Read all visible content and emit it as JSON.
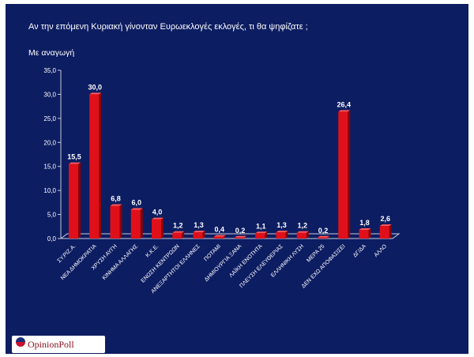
{
  "header": {
    "title": "Αν την επόμενη Κυριακή γίνονταν Ευρωεκλογές εκλογές, τι θα ψηφίζατε ;",
    "subtitle": "Με αναγωγή"
  },
  "logo": {
    "text": "OpinionPoll"
  },
  "colors": {
    "background": "#0d1d62",
    "bar_front": "#e0101a",
    "bar_side": "#8a0008",
    "bar_top": "#ff5a5a",
    "axis": "#c8ccd8"
  },
  "chart_data": {
    "type": "bar",
    "title": "Αν την επόμενη Κυριακή γίνονταν Ευρωεκλογές εκλογές, τι θα ψηφίζατε ;",
    "subtitle": "Με αναγωγή",
    "categories": [
      "ΣΥ.ΡΙΖ.Α.",
      "ΝΕΑ ΔΗΜΟΚΡΑΤΙΑ",
      "ΧΡΥΣΗ ΑΥΓΗ",
      "ΚΙΝΗΜΑ ΑΛΛΑΓΗΣ",
      "Κ.Κ.Ε.",
      "ΕΝΩΣΗ ΚΕΝΤΡΩΩΝ",
      "ΑΝΕΞΑΡΤΗΤΟΙ ΕΛΛΗΝΕΣ",
      "ΠΟΤΑΜΙ",
      "ΔΗΜΙΟΥΡΓΙΑ ΞΑΝΑ",
      "ΛΑΪΚΗ ΕΝΟΤΗΤΑ",
      "ΠΛΕΥΣΗ ΕΛΕΥΘΕΡΙΑΣ",
      "ΕΛΛΗΝΙΚΗ ΛΥΣΗ",
      "ΜΕΡΑ 25",
      "ΔΕΝ ΕΧΩ ΑΠΟΦΑΣΙΣΕΙ",
      "ΔΓ/ΔΑ",
      "ΑΛΛΟ"
    ],
    "values": [
      15.5,
      30.0,
      6.8,
      6.0,
      4.0,
      1.2,
      1.3,
      0.4,
      0.2,
      1.1,
      1.3,
      1.2,
      0.2,
      26.4,
      1.8,
      2.6
    ],
    "value_labels": [
      "15,5",
      "30,0",
      "6,8",
      "6,0",
      "4,0",
      "1,2",
      "1,3",
      "0,4",
      "0,2",
      "1,1",
      "1,3",
      "1,2",
      "0,2",
      "26,4",
      "1,8",
      "2,6"
    ],
    "y_ticks": [
      0,
      5,
      10,
      15,
      20,
      25,
      30,
      35
    ],
    "y_tick_labels": [
      "0,0",
      "5,0",
      "10,0",
      "15,0",
      "20,0",
      "25,0",
      "30,0",
      "35,0"
    ],
    "ylim": [
      0,
      35
    ],
    "xlabel": "",
    "ylabel": "",
    "grid": false,
    "legend": "none"
  }
}
